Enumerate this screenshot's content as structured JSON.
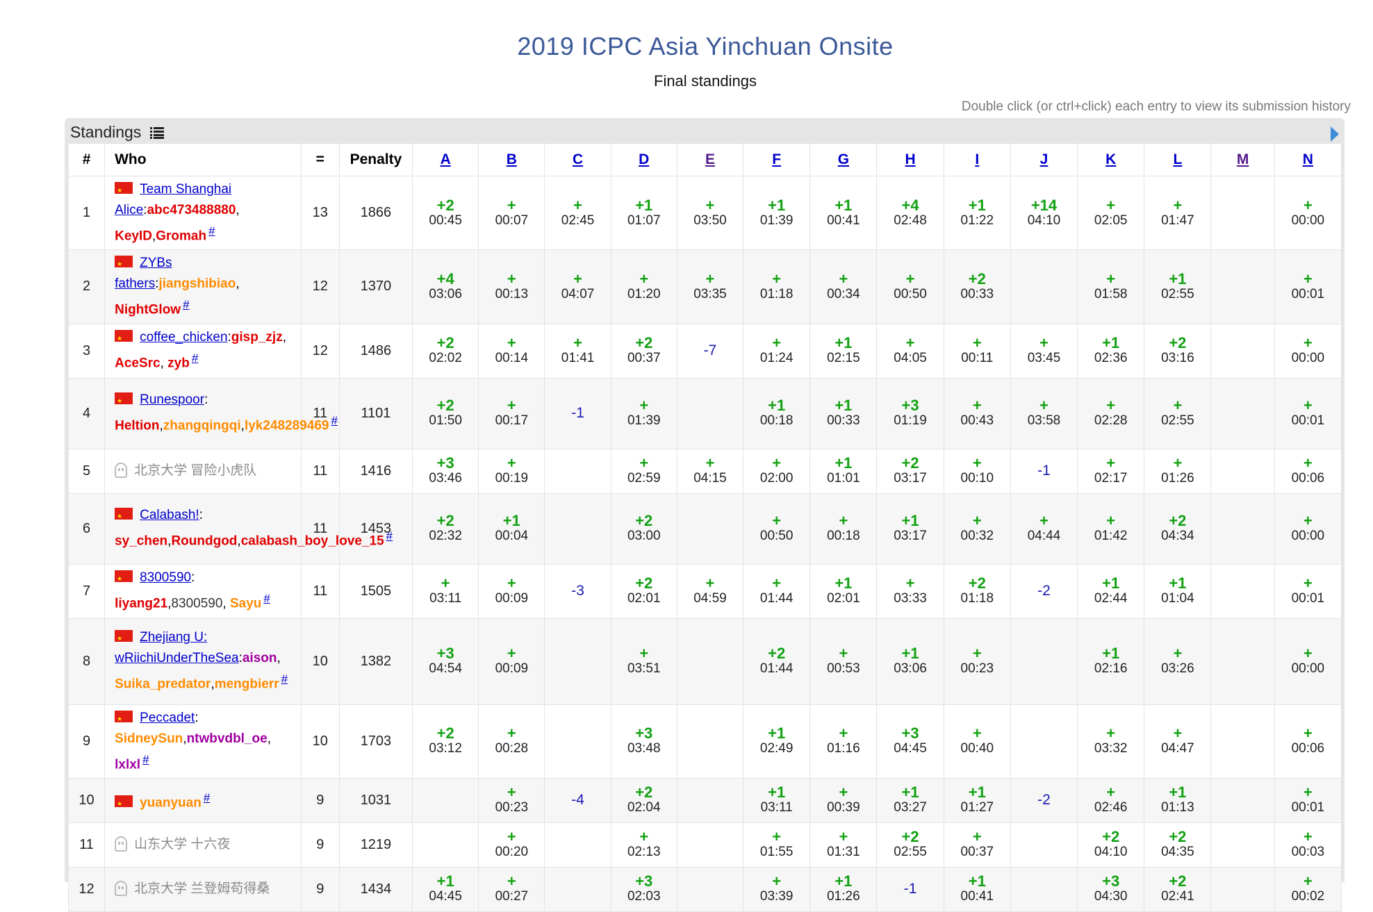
{
  "page": {
    "title": "2019 ICPC Asia Yinchuan Onsite",
    "subtitle": "Final standings",
    "hint": "Double click (or ctrl+click) each entry to view its submission history",
    "panel_title": "Standings"
  },
  "headers": {
    "rank": "#",
    "who": "Who",
    "solved": "=",
    "penalty": "Penalty"
  },
  "problems": [
    "A",
    "B",
    "C",
    "D",
    "E",
    "F",
    "G",
    "H",
    "I",
    "J",
    "K",
    "L",
    "M",
    "N"
  ],
  "rows": [
    {
      "rank": "1",
      "solved": "13",
      "penalty": "1866",
      "flag": "china-flag",
      "team": "Team Shanghai Alice",
      "sep": ":",
      "members": [
        {
          "name": "abc473488880",
          "color": "red",
          "after": ", "
        },
        {
          "name": "KeyID",
          "color": "red",
          "after": ","
        },
        {
          "name": "Gromah",
          "color": "red",
          "after": ""
        }
      ],
      "cells": [
        [
          "+2",
          "00:45"
        ],
        [
          "+",
          "00:07"
        ],
        [
          "+",
          "02:45"
        ],
        [
          "+1",
          "01:07"
        ],
        [
          "+",
          "03:50"
        ],
        [
          "+1",
          "01:39"
        ],
        [
          "+1",
          "00:41"
        ],
        [
          "+4",
          "02:48"
        ],
        [
          "+1",
          "01:22"
        ],
        [
          "+14",
          "04:10"
        ],
        [
          "+",
          "02:05"
        ],
        [
          "+",
          "01:47"
        ],
        null,
        [
          "+",
          "00:00"
        ]
      ]
    },
    {
      "rank": "2",
      "solved": "12",
      "penalty": "1370",
      "flag": "china-flag",
      "team": "ZYBs fathers",
      "sep": ":",
      "members": [
        {
          "name": "jiangshibiao",
          "color": "orange",
          "after": ", "
        },
        {
          "name": "NightGlow",
          "color": "red",
          "after": ""
        }
      ],
      "cells": [
        [
          "+4",
          "03:06"
        ],
        [
          "+",
          "00:13"
        ],
        [
          "+",
          "04:07"
        ],
        [
          "+",
          "01:20"
        ],
        [
          "+",
          "03:35"
        ],
        [
          "+",
          "01:18"
        ],
        [
          "+",
          "00:34"
        ],
        [
          "+",
          "00:50"
        ],
        [
          "+2",
          "00:33"
        ],
        null,
        [
          "+",
          "01:58"
        ],
        [
          "+1",
          "02:55"
        ],
        null,
        [
          "+",
          "00:01"
        ]
      ]
    },
    {
      "rank": "3",
      "solved": "12",
      "penalty": "1486",
      "flag": "china-flag",
      "team": "coffee_chicken",
      "sep": ":",
      "members": [
        {
          "name": "gisp_zjz",
          "color": "red",
          "after": ", "
        },
        {
          "name": "AceSrc",
          "color": "red",
          "after": ", "
        },
        {
          "name": "zyb",
          "color": "red",
          "after": ""
        }
      ],
      "cells": [
        [
          "+2",
          "02:02"
        ],
        [
          "+",
          "00:14"
        ],
        [
          "+",
          "01:41"
        ],
        [
          "+2",
          "00:37"
        ],
        [
          "-7"
        ],
        [
          "+",
          "01:24"
        ],
        [
          "+1",
          "02:15"
        ],
        [
          "+",
          "04:05"
        ],
        [
          "+",
          "00:11"
        ],
        [
          "+",
          "03:45"
        ],
        [
          "+1",
          "02:36"
        ],
        [
          "+2",
          "03:16"
        ],
        null,
        [
          "+",
          "00:00"
        ]
      ]
    },
    {
      "rank": "4",
      "solved": "11",
      "penalty": "1101",
      "flag": "china-flag",
      "team": "Runespoor",
      "sep": ": ",
      "members": [
        {
          "name": "Heltion",
          "color": "red",
          "after": ","
        },
        {
          "name": "zhangqingqi",
          "color": "orange",
          "after": ","
        },
        {
          "name": "lyk248289469",
          "color": "orange",
          "after": ""
        }
      ],
      "cells": [
        [
          "+2",
          "01:50"
        ],
        [
          "+",
          "00:17"
        ],
        [
          "-1"
        ],
        [
          "+",
          "01:39"
        ],
        null,
        [
          "+1",
          "00:18"
        ],
        [
          "+1",
          "00:33"
        ],
        [
          "+3",
          "01:19"
        ],
        [
          "+",
          "00:43"
        ],
        [
          "+",
          "03:58"
        ],
        [
          "+",
          "02:28"
        ],
        [
          "+",
          "02:55"
        ],
        null,
        [
          "+",
          "00:01"
        ]
      ]
    },
    {
      "rank": "5",
      "solved": "11",
      "penalty": "1416",
      "flag": "ghost",
      "team": "北京大学 冒险小虎队",
      "sep": "",
      "unofficial": true,
      "members": [],
      "cells": [
        [
          "+3",
          "03:46"
        ],
        [
          "+",
          "00:19"
        ],
        null,
        [
          "+",
          "02:59"
        ],
        [
          "+",
          "04:15"
        ],
        [
          "+",
          "02:00"
        ],
        [
          "+1",
          "01:01"
        ],
        [
          "+2",
          "03:17"
        ],
        [
          "+",
          "00:10"
        ],
        [
          "-1"
        ],
        [
          "+",
          "02:17"
        ],
        [
          "+",
          "01:26"
        ],
        null,
        [
          "+",
          "00:06"
        ]
      ]
    },
    {
      "rank": "6",
      "solved": "11",
      "penalty": "1453",
      "flag": "china-flag",
      "team": "Calabash!",
      "sep": ": ",
      "members": [
        {
          "name": "sy_chen",
          "color": "red",
          "after": ","
        },
        {
          "name": "Roundgod",
          "color": "red",
          "after": ","
        },
        {
          "name": "calabash_boy_love_15",
          "color": "red",
          "after": ""
        }
      ],
      "cells": [
        [
          "+2",
          "02:32"
        ],
        [
          "+1",
          "00:04"
        ],
        null,
        [
          "+2",
          "03:00"
        ],
        null,
        [
          "+",
          "00:50"
        ],
        [
          "+",
          "00:18"
        ],
        [
          "+1",
          "03:17"
        ],
        [
          "+",
          "00:32"
        ],
        [
          "+",
          "04:44"
        ],
        [
          "+",
          "01:42"
        ],
        [
          "+2",
          "04:34"
        ],
        null,
        [
          "+",
          "00:00"
        ]
      ]
    },
    {
      "rank": "7",
      "solved": "11",
      "penalty": "1505",
      "flag": "china-flag",
      "team": "8300590",
      "sep": ": ",
      "members": [
        {
          "name": "liyang21",
          "color": "red",
          "after": ","
        },
        {
          "name": "8300590",
          "color": "gray",
          "after": ", "
        },
        {
          "name": "Sayu",
          "color": "orange",
          "after": ""
        }
      ],
      "cells": [
        [
          "+",
          "03:11"
        ],
        [
          "+",
          "00:09"
        ],
        [
          "-3"
        ],
        [
          "+2",
          "02:01"
        ],
        [
          "+",
          "04:59"
        ],
        [
          "+",
          "01:44"
        ],
        [
          "+1",
          "02:01"
        ],
        [
          "+",
          "03:33"
        ],
        [
          "+2",
          "01:18"
        ],
        [
          "-2"
        ],
        [
          "+1",
          "02:44"
        ],
        [
          "+1",
          "01:04"
        ],
        null,
        [
          "+",
          "00:01"
        ]
      ]
    },
    {
      "rank": "8",
      "solved": "10",
      "penalty": "1382",
      "flag": "china-flag",
      "team": "Zhejiang U: wRiichiUnderTheSea",
      "sep": ":",
      "members": [
        {
          "name": "aison",
          "color": "purple",
          "after": ", "
        },
        {
          "name": "Suika_predator",
          "color": "orange",
          "after": ","
        },
        {
          "name": "mengbierr",
          "color": "orange",
          "after": ""
        }
      ],
      "cells": [
        [
          "+3",
          "04:54"
        ],
        [
          "+",
          "00:09"
        ],
        null,
        [
          "+",
          "03:51"
        ],
        null,
        [
          "+2",
          "01:44"
        ],
        [
          "+",
          "00:53"
        ],
        [
          "+1",
          "03:06"
        ],
        [
          "+",
          "00:23"
        ],
        null,
        [
          "+1",
          "02:16"
        ],
        [
          "+",
          "03:26"
        ],
        null,
        [
          "+",
          "00:00"
        ]
      ]
    },
    {
      "rank": "9",
      "solved": "10",
      "penalty": "1703",
      "flag": "china-flag",
      "team": "Peccadet",
      "sep": ": ",
      "members": [
        {
          "name": "SidneySun",
          "color": "orange",
          "after": ","
        },
        {
          "name": "ntwbvdbl_oe",
          "color": "purple",
          "after": ", "
        },
        {
          "name": "lxlxl",
          "color": "purple",
          "after": ""
        }
      ],
      "cells": [
        [
          "+2",
          "03:12"
        ],
        [
          "+",
          "00:28"
        ],
        null,
        [
          "+3",
          "03:48"
        ],
        null,
        [
          "+1",
          "02:49"
        ],
        [
          "+",
          "01:16"
        ],
        [
          "+3",
          "04:45"
        ],
        [
          "+",
          "00:40"
        ],
        null,
        [
          "+",
          "03:32"
        ],
        [
          "+",
          "04:47"
        ],
        null,
        [
          "+",
          "00:06"
        ]
      ]
    },
    {
      "rank": "10",
      "solved": "9",
      "penalty": "1031",
      "flag": "china-flag",
      "team": "",
      "sep": "",
      "members": [
        {
          "name": "yuanyuan",
          "color": "orange",
          "after": ""
        }
      ],
      "cells": [
        null,
        [
          "+",
          "00:23"
        ],
        [
          "-4"
        ],
        [
          "+2",
          "02:04"
        ],
        null,
        [
          "+1",
          "03:11"
        ],
        [
          "+",
          "00:39"
        ],
        [
          "+1",
          "03:27"
        ],
        [
          "+1",
          "01:27"
        ],
        [
          "-2"
        ],
        [
          "+",
          "02:46"
        ],
        [
          "+1",
          "01:13"
        ],
        null,
        [
          "+",
          "00:01"
        ]
      ]
    },
    {
      "rank": "11",
      "solved": "9",
      "penalty": "1219",
      "flag": "ghost",
      "team": "山东大学 十六夜",
      "sep": "",
      "unofficial": true,
      "members": [],
      "cells": [
        null,
        [
          "+",
          "00:20"
        ],
        null,
        [
          "+",
          "02:13"
        ],
        null,
        [
          "+",
          "01:55"
        ],
        [
          "+",
          "01:31"
        ],
        [
          "+2",
          "02:55"
        ],
        [
          "+",
          "00:37"
        ],
        null,
        [
          "+2",
          "04:10"
        ],
        [
          "+2",
          "04:35"
        ],
        null,
        [
          "+",
          "00:03"
        ]
      ]
    },
    {
      "rank": "12",
      "solved": "9",
      "penalty": "1434",
      "flag": "ghost",
      "team": "北京大学 兰登姆苟得桑",
      "sep": "",
      "unofficial": true,
      "members": [],
      "cells": [
        [
          "+1",
          "04:45"
        ],
        [
          "+",
          "00:27"
        ],
        null,
        [
          "+3",
          "02:03"
        ],
        null,
        [
          "+",
          "03:39"
        ],
        [
          "+1",
          "01:26"
        ],
        [
          "-1"
        ],
        [
          "+1",
          "00:41"
        ],
        null,
        [
          "+3",
          "04:30"
        ],
        [
          "+2",
          "02:41"
        ],
        null,
        [
          "+",
          "00:02"
        ]
      ]
    }
  ]
}
